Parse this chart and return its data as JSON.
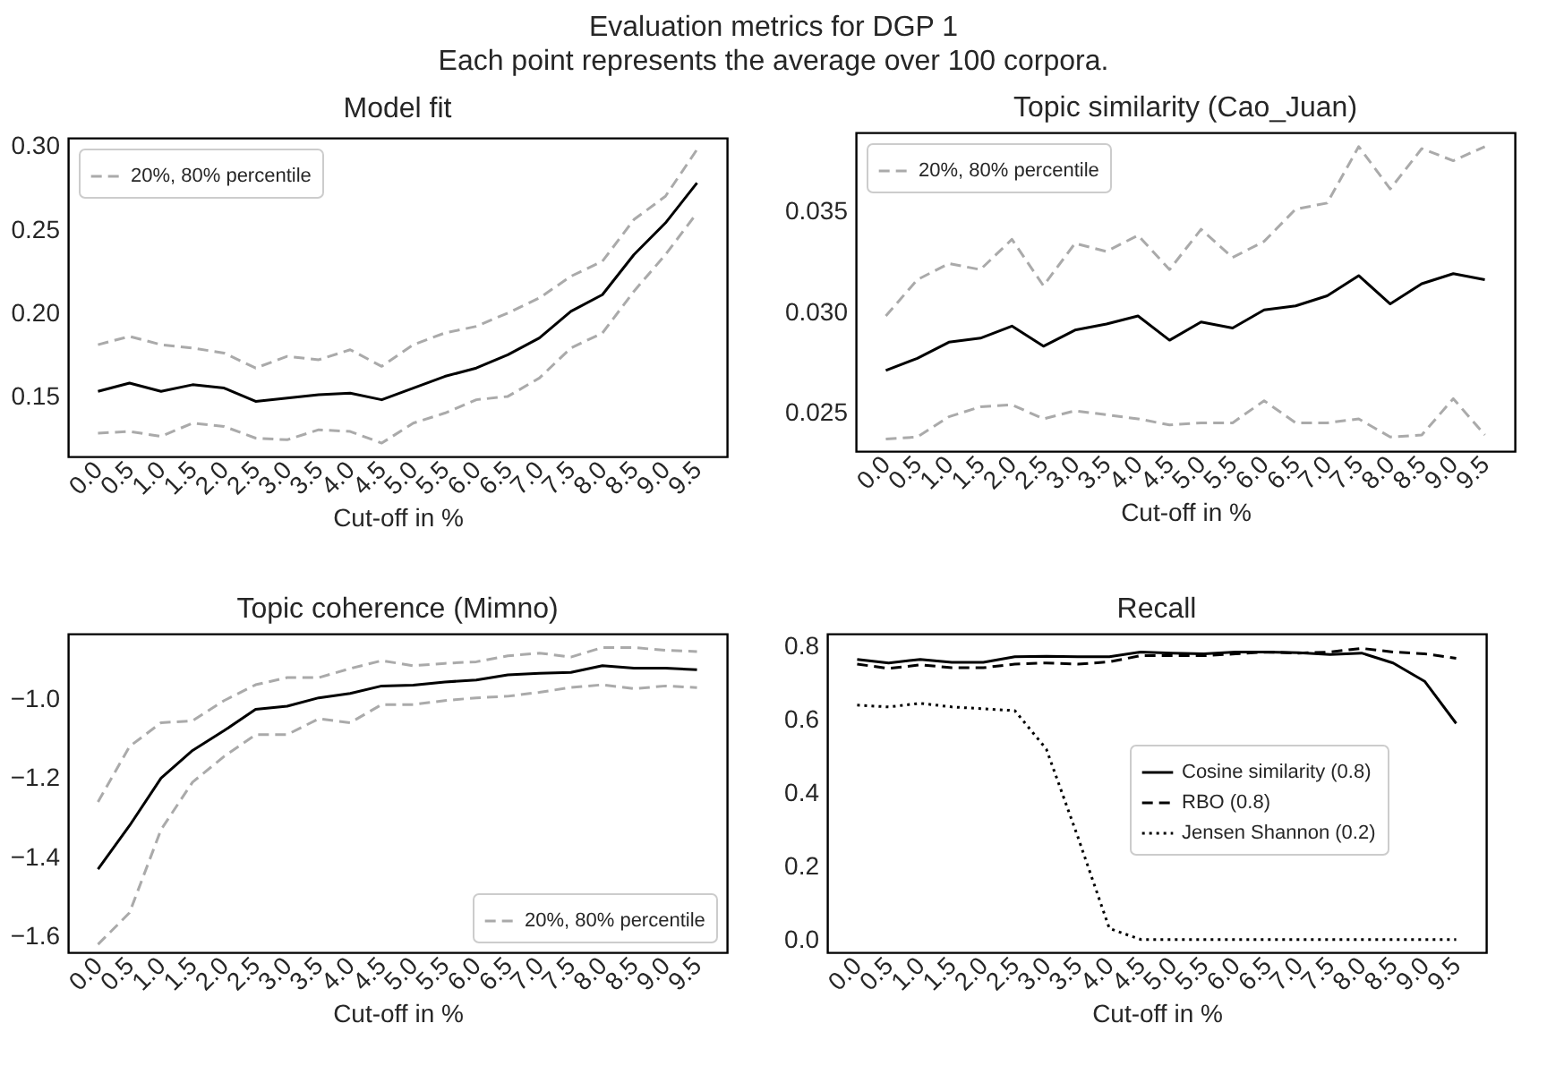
{
  "chart_data": [
    {
      "type": "line",
      "title": "Model fit",
      "xlabel": "Cut-off in %",
      "annotations": [
        "Evaluation metrics for DGP 1",
        "Each point represents the average over 100 corpora."
      ],
      "categories": [
        "0.0",
        "0.5",
        "1.0",
        "1.5",
        "2.0",
        "2.5",
        "3.0",
        "3.5",
        "4.0",
        "4.5",
        "5.0",
        "5.5",
        "6.0",
        "6.5",
        "7.0",
        "7.5",
        "8.0",
        "8.5",
        "9.0",
        "9.5"
      ],
      "ylim": [
        0.114,
        0.305
      ],
      "yticks": [
        {
          "value": 0.15,
          "label": "0.15"
        },
        {
          "value": 0.2,
          "label": "0.20"
        },
        {
          "value": 0.25,
          "label": "0.25"
        },
        {
          "value": 0.3,
          "label": "0.30"
        }
      ],
      "legend": "top left",
      "series": [
        {
          "color": "#000000",
          "line_style": "solid",
          "values": [
            0.153,
            0.158,
            0.153,
            0.157,
            0.155,
            0.147,
            0.149,
            0.151,
            0.152,
            0.148,
            0.155,
            0.162,
            0.167,
            0.175,
            0.185,
            0.201,
            0.211,
            0.235,
            0.254,
            0.278
          ]
        },
        {
          "name": "20%, 80% percentile",
          "color": "#aaaaaa",
          "line_style": "dashed",
          "values": [
            0.181,
            0.186,
            0.181,
            0.179,
            0.176,
            0.167,
            0.174,
            0.172,
            0.178,
            0.168,
            0.181,
            0.188,
            0.192,
            0.2,
            0.209,
            0.222,
            0.231,
            0.256,
            0.27,
            0.298
          ]
        },
        {
          "color": "#aaaaaa",
          "line_style": "dashed",
          "values": [
            0.128,
            0.129,
            0.126,
            0.134,
            0.132,
            0.125,
            0.124,
            0.13,
            0.129,
            0.122,
            0.134,
            0.14,
            0.148,
            0.15,
            0.161,
            0.179,
            0.188,
            0.213,
            0.235,
            0.26
          ]
        }
      ]
    },
    {
      "type": "line",
      "title": "Topic similarity (Cao_Juan)",
      "xlabel": "Cut-off in %",
      "categories": [
        "0.0",
        "0.5",
        "1.0",
        "1.5",
        "2.0",
        "2.5",
        "3.0",
        "3.5",
        "4.0",
        "4.5",
        "5.0",
        "5.5",
        "6.0",
        "6.5",
        "7.0",
        "7.5",
        "8.0",
        "8.5",
        "9.0",
        "9.5"
      ],
      "ylim": [
        0.0231,
        0.0389
      ],
      "yticks": [
        {
          "value": 0.025,
          "label": "0.025"
        },
        {
          "value": 0.03,
          "label": "0.030"
        },
        {
          "value": 0.035,
          "label": "0.035"
        }
      ],
      "legend": "top left",
      "series": [
        {
          "color": "#000000",
          "line_style": "solid",
          "values": [
            0.0271,
            0.0277,
            0.0285,
            0.0287,
            0.0293,
            0.0283,
            0.0291,
            0.0294,
            0.0298,
            0.0286,
            0.0295,
            0.0292,
            0.0301,
            0.0303,
            0.0308,
            0.0318,
            0.0304,
            0.0314,
            0.0319,
            0.0316
          ]
        },
        {
          "name": "20%, 80% percentile",
          "color": "#aaaaaa",
          "line_style": "dashed",
          "values": [
            0.0298,
            0.0316,
            0.0324,
            0.0321,
            0.0336,
            0.0313,
            0.0334,
            0.033,
            0.0338,
            0.0321,
            0.0341,
            0.0327,
            0.0335,
            0.0351,
            0.0354,
            0.0382,
            0.0361,
            0.0381,
            0.0375,
            0.0382
          ]
        },
        {
          "color": "#aaaaaa",
          "line_style": "dashed",
          "values": [
            0.0237,
            0.0238,
            0.0248,
            0.0253,
            0.0254,
            0.0247,
            0.0251,
            0.0249,
            0.0247,
            0.0244,
            0.0245,
            0.0245,
            0.0256,
            0.0245,
            0.0245,
            0.0247,
            0.0238,
            0.0239,
            0.0257,
            0.0239
          ]
        }
      ]
    },
    {
      "type": "line",
      "title": "Topic coherence (Mimno)",
      "xlabel": "Cut-off in %",
      "categories": [
        "0.0",
        "0.5",
        "1.0",
        "1.5",
        "2.0",
        "2.5",
        "3.0",
        "3.5",
        "4.0",
        "4.5",
        "5.0",
        "5.5",
        "6.0",
        "6.5",
        "7.0",
        "7.5",
        "8.0",
        "8.5",
        "9.0",
        "9.5"
      ],
      "ylim": [
        -1.64,
        -0.835
      ],
      "yticks": [
        {
          "value": -1.6,
          "label": "−1.6"
        },
        {
          "value": -1.4,
          "label": "−1.4"
        },
        {
          "value": -1.2,
          "label": "−1.2"
        },
        {
          "value": -1.0,
          "label": "−1.0"
        }
      ],
      "legend": "bottom right",
      "series": [
        {
          "color": "#000000",
          "line_style": "solid",
          "values": [
            -1.43,
            -1.32,
            -1.2,
            -1.13,
            -1.08,
            -1.026,
            -1.018,
            -0.997,
            -0.986,
            -0.967,
            -0.965,
            -0.957,
            -0.952,
            -0.939,
            -0.935,
            -0.933,
            -0.916,
            -0.922,
            -0.922,
            -0.926
          ]
        },
        {
          "name": "20%, 80% percentile",
          "color": "#aaaaaa",
          "line_style": "dashed",
          "values": [
            -1.26,
            -1.12,
            -1.06,
            -1.055,
            -1.004,
            -0.964,
            -0.946,
            -0.946,
            -0.923,
            -0.903,
            -0.916,
            -0.91,
            -0.906,
            -0.891,
            -0.884,
            -0.894,
            -0.87,
            -0.87,
            -0.877,
            -0.88
          ]
        },
        {
          "color": "#aaaaaa",
          "line_style": "dashed",
          "values": [
            -1.62,
            -1.54,
            -1.33,
            -1.21,
            -1.145,
            -1.09,
            -1.09,
            -1.05,
            -1.06,
            -1.014,
            -1.014,
            -1.004,
            -0.997,
            -0.993,
            -0.983,
            -0.971,
            -0.964,
            -0.974,
            -0.967,
            -0.971
          ]
        }
      ]
    },
    {
      "type": "line",
      "title": "Recall",
      "xlabel": "Cut-off in %",
      "categories": [
        "0.0",
        "0.5",
        "1.0",
        "1.5",
        "2.0",
        "2.5",
        "3.0",
        "3.5",
        "4.0",
        "4.5",
        "5.0",
        "5.5",
        "6.0",
        "6.5",
        "7.0",
        "7.5",
        "8.0",
        "8.5",
        "9.0",
        "9.5"
      ],
      "ylim": [
        -0.035,
        0.835
      ],
      "yticks": [
        {
          "value": 0,
          "label": "0.0"
        },
        {
          "value": 0.2,
          "label": "0.2"
        },
        {
          "value": 0.4,
          "label": "0.4"
        },
        {
          "value": 0.6,
          "label": "0.6"
        },
        {
          "value": 0.8,
          "label": "0.8"
        }
      ],
      "legend": "right",
      "series": [
        {
          "name": "Cosine similarity (0.8)",
          "color": "#000000",
          "line_style": "solid",
          "values": [
            0.765,
            0.755,
            0.765,
            0.757,
            0.757,
            0.772,
            0.773,
            0.772,
            0.772,
            0.785,
            0.782,
            0.78,
            0.785,
            0.785,
            0.783,
            0.778,
            0.782,
            0.755,
            0.705,
            0.59
          ]
        },
        {
          "name": "RBO (0.8)",
          "color": "#000000",
          "line_style": "dashed",
          "values": [
            0.752,
            0.74,
            0.75,
            0.742,
            0.742,
            0.752,
            0.755,
            0.752,
            0.758,
            0.775,
            0.775,
            0.775,
            0.78,
            0.785,
            0.782,
            0.785,
            0.795,
            0.785,
            0.78,
            0.768
          ]
        },
        {
          "name": "Jensen Shannon (0.2)",
          "color": "#000000",
          "line_style": "dotted",
          "values": [
            0.64,
            0.635,
            0.645,
            0.635,
            0.63,
            0.625,
            0.52,
            0.28,
            0.03,
            0.0,
            0.0,
            0.0,
            0.0,
            0.0,
            0.0,
            0.0,
            0.0,
            0.0,
            0.0,
            0.0
          ]
        }
      ]
    }
  ]
}
